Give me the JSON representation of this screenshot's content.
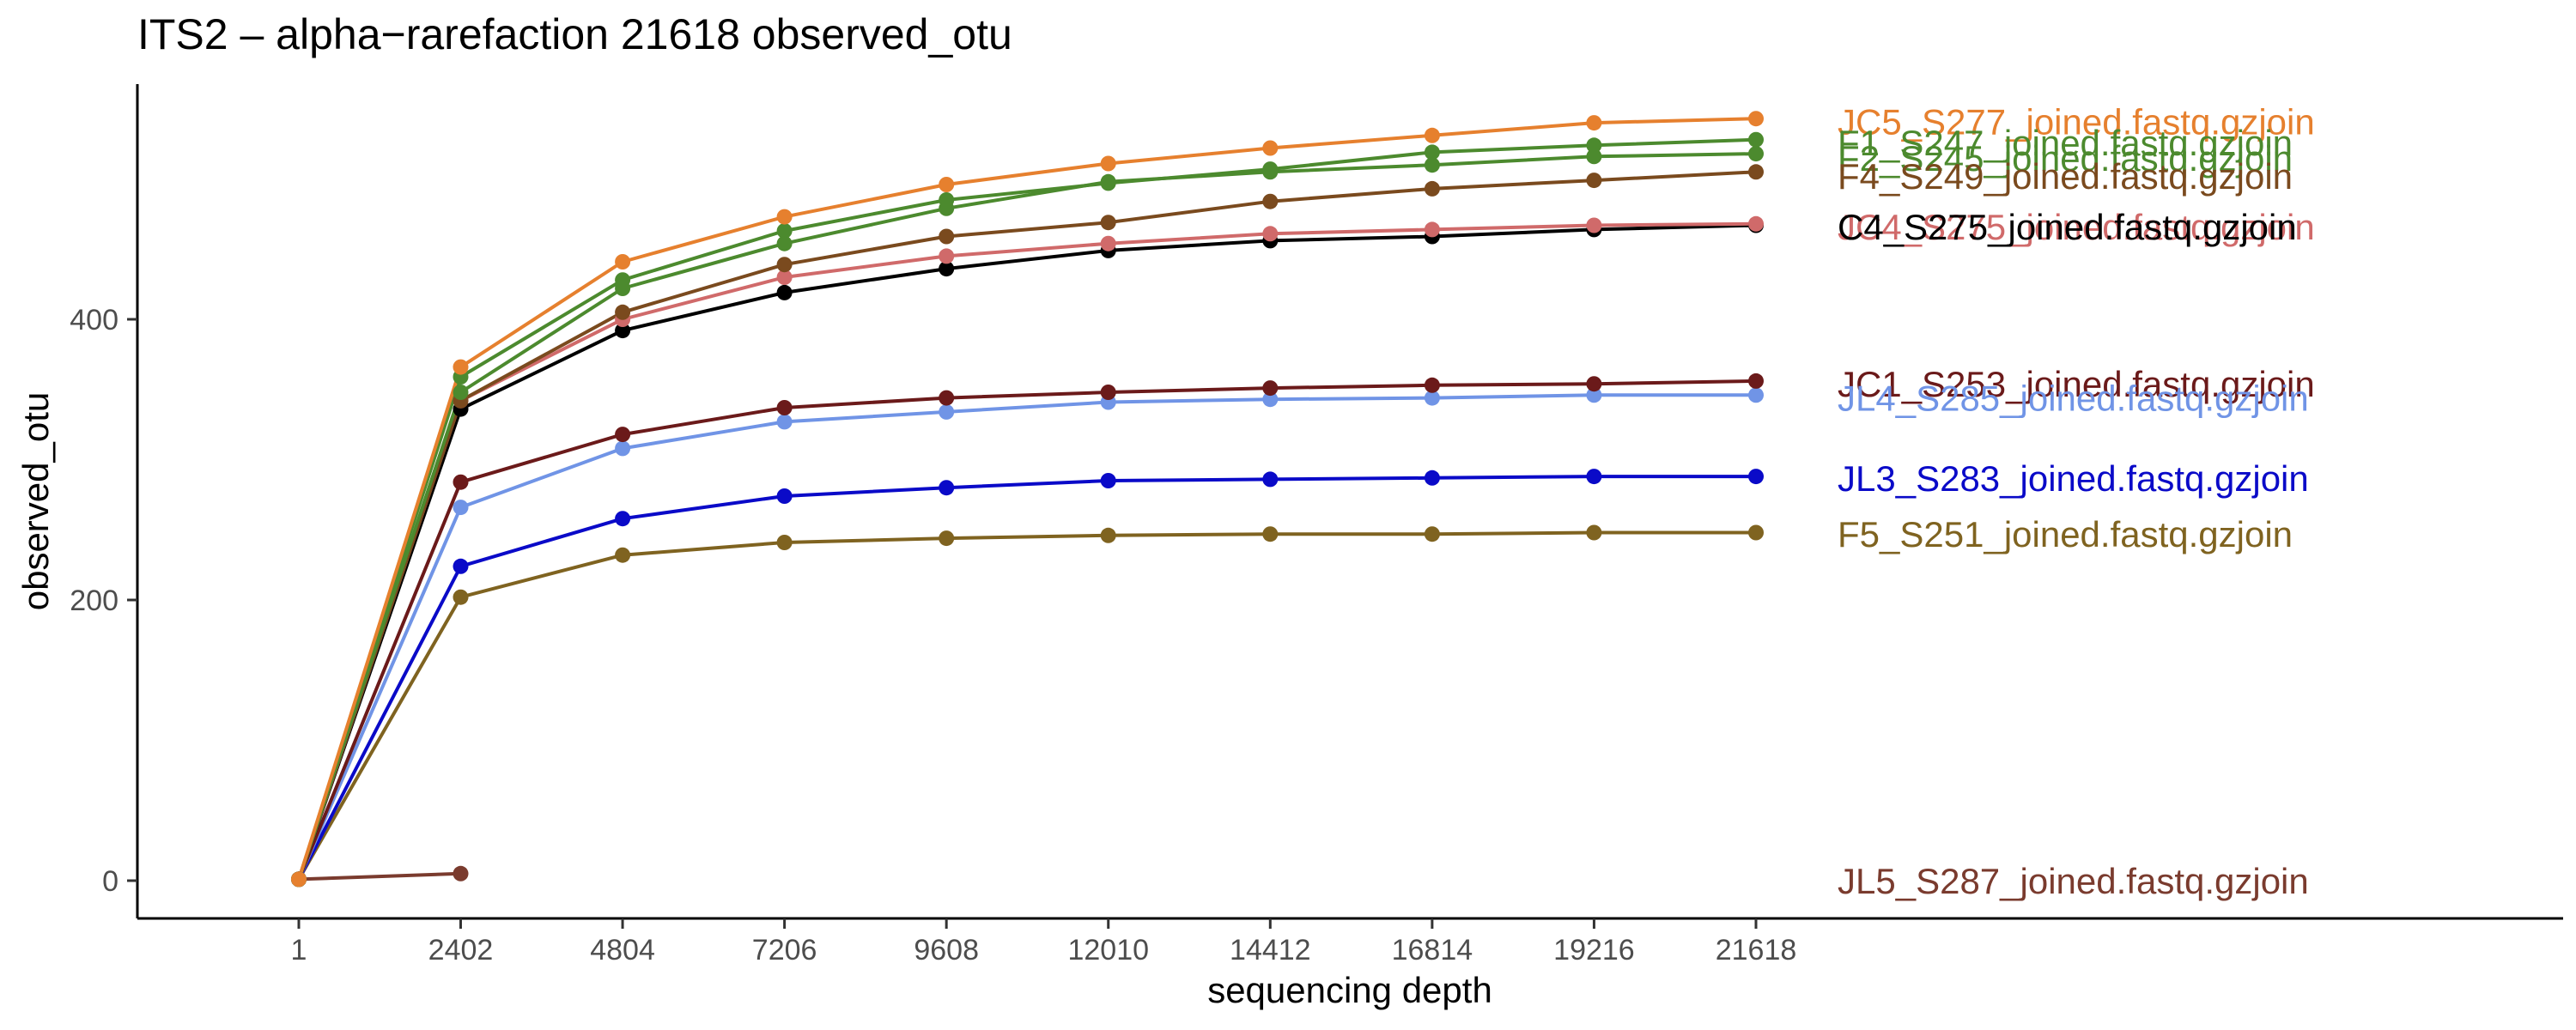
{
  "chart_data": {
    "type": "line",
    "title": "ITS2 – alpha−rarefaction 21618 observed_otu",
    "xlabel": "sequencing depth",
    "ylabel": "observed_otu",
    "x": [
      1,
      2402,
      4804,
      7206,
      9608,
      12010,
      14412,
      16814,
      19216,
      21618
    ],
    "x_tick_labels": [
      "1",
      "2402",
      "4804",
      "7206",
      "9608",
      "12010",
      "14412",
      "16814",
      "19216",
      "21618"
    ],
    "y_ticks": [
      0,
      200,
      400
    ],
    "y_tick_labels": [
      "0",
      "200",
      "400"
    ],
    "xlim": [
      1,
      36000
    ],
    "ylim": [
      -27,
      569
    ],
    "grid": false,
    "legend": "direct labels at right end of lines",
    "series": [
      {
        "name": "JC5_S277_joined.fastq.gzjoin",
        "color": "#E6802E",
        "label_y": 541,
        "values": [
          1,
          366,
          441,
          473,
          496,
          511,
          522,
          531,
          540,
          543
        ]
      },
      {
        "name": "F1_S247_joined.fastq.gzjoin",
        "color": "#4C8A2E",
        "label_y": 526,
        "values": [
          1,
          359,
          428,
          463,
          485,
          497,
          507,
          519,
          524,
          528
        ]
      },
      {
        "name": "F2_S245_joined.fastq.gzjoin",
        "color": "#4C8A2E",
        "label_y": 515,
        "values": [
          1,
          348,
          422,
          454,
          479,
          498,
          505,
          510,
          516,
          518
        ]
      },
      {
        "name": "F4_S249_joined.fastq.gzjoin",
        "color": "#7A4A1E",
        "label_y": 502,
        "values": [
          1,
          342,
          405,
          439,
          459,
          469,
          484,
          493,
          499,
          505
        ]
      },
      {
        "name": "JC4_S275_joined.fastq.gzjoin",
        "color": "#D06A6A",
        "label_y": 466,
        "values": [
          1,
          342,
          400,
          430,
          445,
          454,
          461,
          464,
          467,
          468
        ]
      },
      {
        "name": "C4_S275_joined.fastq.gzjoin",
        "color": "#000000",
        "label_y": 466,
        "values": [
          1,
          336,
          392,
          419,
          436,
          449,
          456,
          459,
          464,
          467
        ]
      },
      {
        "name": "JC1_S253_joined.fastq.gzjoin",
        "color": "#6B1A1A",
        "label_y": 354,
        "values": [
          1,
          284,
          318,
          337,
          344,
          348,
          351,
          353,
          354,
          356
        ]
      },
      {
        "name": "JL4_S285_joined.fastq.gzjoin",
        "color": "#7094E6",
        "label_y": 344,
        "values": [
          1,
          266,
          308,
          327,
          334,
          341,
          343,
          344,
          346,
          346
        ]
      },
      {
        "name": "JL3_S283_joined.fastq.gzjoin",
        "color": "#0A0AC8",
        "label_y": 287,
        "values": [
          1,
          224,
          258,
          274,
          280,
          285,
          286,
          287,
          288,
          288
        ]
      },
      {
        "name": "F5_S251_joined.fastq.gzjoin",
        "color": "#7F6320",
        "label_y": 247,
        "values": [
          1,
          202,
          232,
          241,
          244,
          246,
          247,
          247,
          248,
          248
        ]
      },
      {
        "name": "JL5_S287_joined.fastq.gzjoin",
        "color": "#7A3B2E",
        "label_y": 0,
        "values": [
          1,
          5,
          null,
          null,
          null,
          null,
          null,
          null,
          null,
          null
        ]
      }
    ]
  }
}
